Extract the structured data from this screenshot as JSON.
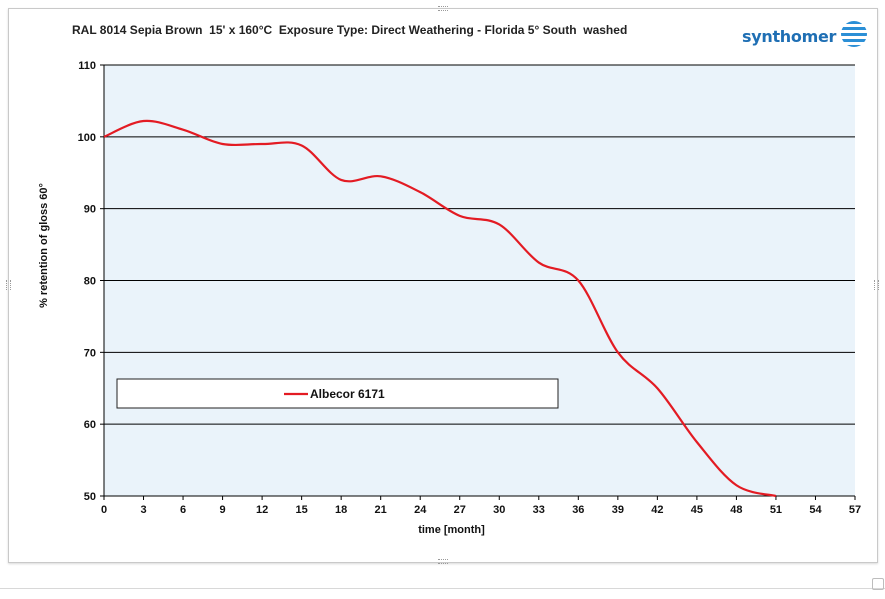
{
  "chart_title": "RAL 8014 Sepia Brown  15' x 160°C  Exposure Type: Direct Weathering - Florida 5° South  washed",
  "logo": {
    "text": "synthomer",
    "icon": "synthomer-sphere-logo",
    "color": "#1f6fb4"
  },
  "chart_data": {
    "type": "line",
    "xlabel": "time [month]",
    "ylabel": "% retention of gloss 60°",
    "xlim": [
      0,
      57
    ],
    "ylim": [
      50,
      110
    ],
    "x_ticks": [
      0,
      3,
      6,
      9,
      12,
      15,
      18,
      21,
      24,
      27,
      30,
      33,
      36,
      39,
      42,
      45,
      48,
      51,
      54,
      57
    ],
    "y_ticks": [
      50,
      60,
      70,
      80,
      90,
      100,
      110
    ],
    "grid": "horizontal",
    "plot_background": "#eaf3fa",
    "legend_placement": "lower-left",
    "series": [
      {
        "name": "Albecor 6171",
        "color": "#e31b23",
        "x": [
          0,
          3,
          6,
          9,
          12,
          15,
          18,
          21,
          24,
          27,
          30,
          33,
          36,
          39,
          42,
          45,
          48,
          51
        ],
        "y": [
          100,
          102.2,
          101,
          99,
          99,
          98.8,
          94,
          94.5,
          92.3,
          89,
          87.8,
          82.5,
          80,
          70,
          65,
          57.5,
          51.5,
          50
        ]
      }
    ]
  }
}
